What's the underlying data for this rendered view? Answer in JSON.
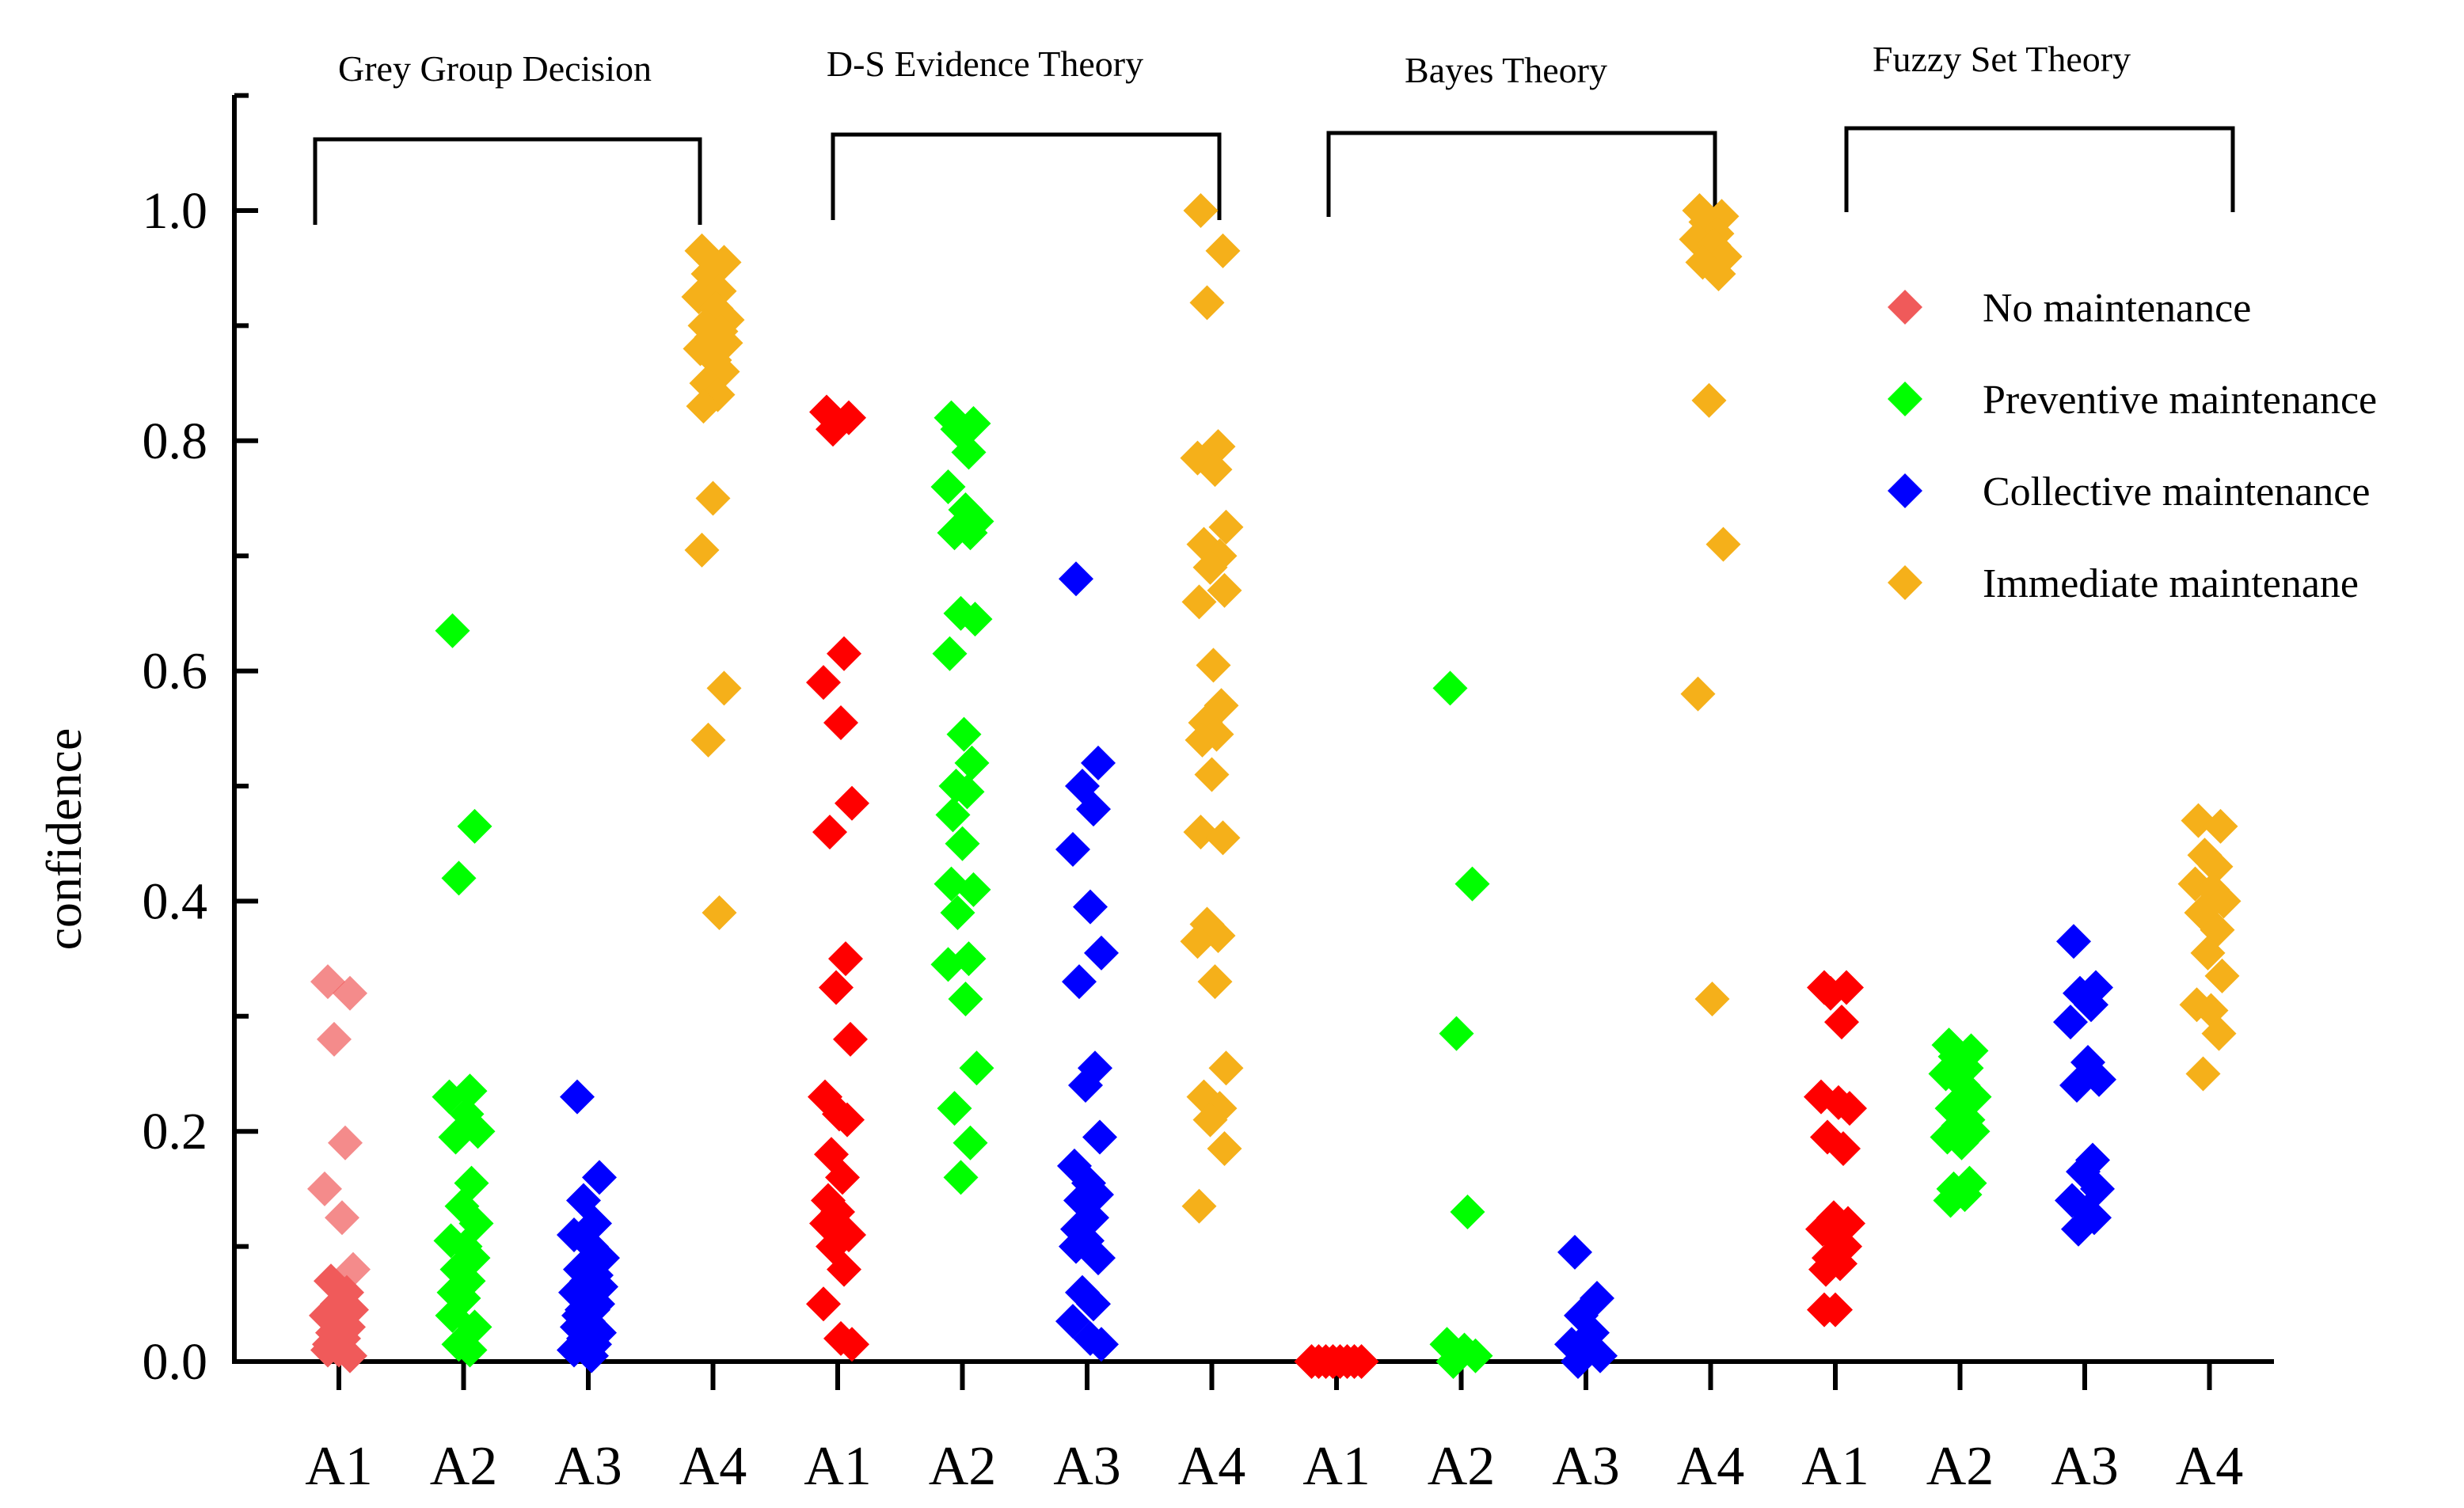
{
  "chart_data": {
    "type": "scatter",
    "ylabel": "confidence",
    "xlabel": "",
    "ylim": [
      0,
      1.1
    ],
    "yticks": [
      "0.0",
      "0.2",
      "0.4",
      "0.6",
      "0.8",
      "1.0"
    ],
    "ytick_values": [
      0,
      0.2,
      0.4,
      0.6,
      0.8,
      1.0
    ],
    "grid": false,
    "legend_position": "top-right",
    "groups": [
      {
        "name": "Grey Group Decision",
        "categories": [
          "A1",
          "A2",
          "A3",
          "A4"
        ]
      },
      {
        "name": "D-S Evidence Theory",
        "categories": [
          "A1",
          "A2",
          "A3",
          "A4"
        ]
      },
      {
        "name": "Bayes Theory",
        "categories": [
          "A1",
          "A2",
          "A3",
          "A4"
        ]
      },
      {
        "name": "Fuzzy Set Theory",
        "categories": [
          "A1",
          "A2",
          "A3",
          "A4"
        ]
      }
    ],
    "series": [
      {
        "name": "No maintenance",
        "color": "#ff0000",
        "legend_color": "#f05a5a",
        "category": "A1",
        "points": [
          {
            "group": 0,
            "values": [
              0.33,
              0.32,
              0.28,
              0.19,
              0.15,
              0.125,
              0.08,
              0.07,
              0.06,
              0.05,
              0.045,
              0.04,
              0.035,
              0.03,
              0.025,
              0.02,
              0.015,
              0.01,
              0.01,
              0.005
            ]
          },
          {
            "group": 1,
            "values": [
              0.825,
              0.82,
              0.81,
              0.615,
              0.59,
              0.555,
              0.485,
              0.46,
              0.35,
              0.325,
              0.28,
              0.23,
              0.215,
              0.21,
              0.18,
              0.16,
              0.14,
              0.13,
              0.12,
              0.11,
              0.1,
              0.08,
              0.05,
              0.02,
              0.015
            ]
          },
          {
            "group": 2,
            "values": [
              0.0,
              0.0,
              0.0,
              0.0,
              0.0,
              0.0,
              0.0,
              0.0
            ]
          },
          {
            "group": 3,
            "values": [
              0.325,
              0.325,
              0.32,
              0.295,
              0.23,
              0.225,
              0.22,
              0.195,
              0.185,
              0.125,
              0.12,
              0.115,
              0.105,
              0.1,
              0.09,
              0.085,
              0.08,
              0.045,
              0.045
            ]
          }
        ]
      },
      {
        "name": "Preventive maintenance",
        "color": "#00ff00",
        "category": "A2",
        "points": [
          {
            "group": 0,
            "values": [
              0.635,
              0.465,
              0.42,
              0.235,
              0.23,
              0.215,
              0.2,
              0.195,
              0.155,
              0.135,
              0.12,
              0.105,
              0.1,
              0.09,
              0.08,
              0.07,
              0.06,
              0.055,
              0.04,
              0.03,
              0.015,
              0.01
            ]
          },
          {
            "group": 1,
            "values": [
              0.82,
              0.815,
              0.81,
              0.79,
              0.76,
              0.74,
              0.73,
              0.72,
              0.72,
              0.65,
              0.645,
              0.615,
              0.545,
              0.52,
              0.5,
              0.495,
              0.475,
              0.45,
              0.415,
              0.41,
              0.39,
              0.35,
              0.345,
              0.315,
              0.255,
              0.22,
              0.19,
              0.16
            ]
          },
          {
            "group": 2,
            "values": [
              0.585,
              0.415,
              0.285,
              0.13,
              0.015,
              0.01,
              0.005,
              0.0
            ]
          },
          {
            "group": 3,
            "values": [
              0.275,
              0.27,
              0.265,
              0.255,
              0.25,
              0.24,
              0.23,
              0.22,
              0.21,
              0.205,
              0.2,
              0.195,
              0.19,
              0.155,
              0.15,
              0.145,
              0.14
            ]
          }
        ]
      },
      {
        "name": "Collective maintenance",
        "color": "#0000ff",
        "category": "A3",
        "points": [
          {
            "group": 0,
            "values": [
              0.23,
              0.16,
              0.14,
              0.12,
              0.11,
              0.1,
              0.09,
              0.08,
              0.075,
              0.07,
              0.065,
              0.06,
              0.055,
              0.05,
              0.045,
              0.045,
              0.04,
              0.035,
              0.03,
              0.025,
              0.02,
              0.015,
              0.01,
              0.005
            ]
          },
          {
            "group": 1,
            "values": [
              0.68,
              0.52,
              0.5,
              0.48,
              0.445,
              0.395,
              0.355,
              0.33,
              0.255,
              0.24,
              0.195,
              0.17,
              0.155,
              0.145,
              0.14,
              0.125,
              0.115,
              0.105,
              0.1,
              0.09,
              0.06,
              0.05,
              0.035,
              0.02,
              0.015
            ]
          },
          {
            "group": 2,
            "values": [
              0.095,
              0.055,
              0.04,
              0.025,
              0.015,
              0.01,
              0.005,
              0.0
            ]
          },
          {
            "group": 3,
            "values": [
              0.365,
              0.325,
              0.32,
              0.31,
              0.295,
              0.26,
              0.245,
              0.24,
              0.175,
              0.165,
              0.15,
              0.14,
              0.13,
              0.125,
              0.115
            ]
          }
        ]
      },
      {
        "name": "Immediate maintenane",
        "color": "#f5b01a",
        "category": "A4",
        "points": [
          {
            "group": 0,
            "values": [
              0.965,
              0.955,
              0.945,
              0.93,
              0.925,
              0.915,
              0.905,
              0.9,
              0.895,
              0.89,
              0.885,
              0.88,
              0.87,
              0.86,
              0.85,
              0.84,
              0.83,
              0.75,
              0.705,
              0.585,
              0.54,
              0.39
            ]
          },
          {
            "group": 1,
            "values": [
              1.0,
              0.965,
              0.92,
              0.795,
              0.785,
              0.775,
              0.725,
              0.71,
              0.7,
              0.69,
              0.67,
              0.66,
              0.605,
              0.57,
              0.555,
              0.545,
              0.54,
              0.51,
              0.46,
              0.455,
              0.38,
              0.37,
              0.365,
              0.33,
              0.255,
              0.23,
              0.22,
              0.21,
              0.185,
              0.135
            ]
          },
          {
            "group": 2,
            "values": [
              1.0,
              0.995,
              0.99,
              0.98,
              0.975,
              0.97,
              0.96,
              0.955,
              0.945,
              0.835,
              0.71,
              0.58,
              0.315
            ]
          },
          {
            "group": 3,
            "values": [
              0.47,
              0.465,
              0.44,
              0.43,
              0.415,
              0.41,
              0.4,
              0.39,
              0.375,
              0.355,
              0.335,
              0.31,
              0.305,
              0.285,
              0.25
            ]
          }
        ]
      }
    ]
  }
}
